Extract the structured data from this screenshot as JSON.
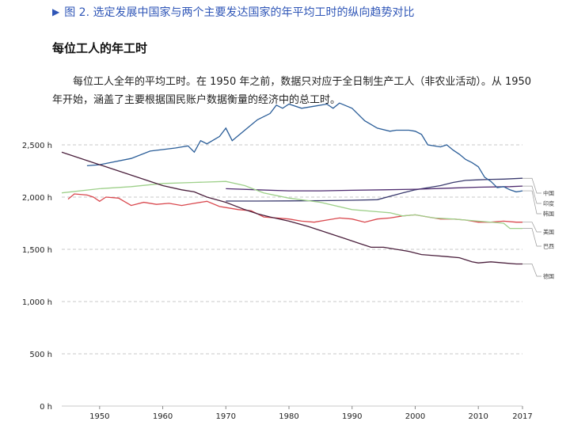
{
  "header": {
    "figure_marker": "▶",
    "figure_caption": "图 2. 选定发展中国家与两个主要发达国家的年平均工时的纵向趋势对比"
  },
  "chart_data": {
    "type": "line",
    "title": "每位工人的年工时",
    "subtitle": "每位工人全年的平均工时。在 1950 年之前，数据只对应于全日制生产工人（非农业活动）。从 1950 年开始，涵盖了主要根据国民账户数据衡量的经济中的总工时。",
    "xlim": [
      1944,
      2017
    ],
    "ylim": [
      0,
      2750
    ],
    "x_ticks": [
      1950,
      1960,
      1970,
      1980,
      1990,
      2000,
      2010,
      2017
    ],
    "y_ticks": [
      {
        "value": 0,
        "label": "0 h"
      },
      {
        "value": 500,
        "label": "500 h"
      },
      {
        "value": 1000,
        "label": "1,000 h"
      },
      {
        "value": 1500,
        "label": "1,500 h"
      },
      {
        "value": 2000,
        "label": "2,000 h"
      },
      {
        "value": 2500,
        "label": "2,500 h"
      }
    ],
    "grid": "horizontal-dashed",
    "legend_placement": "right",
    "series": [
      {
        "name": "中国",
        "color": "#3a3a6e",
        "points": [
          [
            1970,
            1962
          ],
          [
            1975,
            1962
          ],
          [
            1980,
            1964
          ],
          [
            1985,
            1966
          ],
          [
            1990,
            1970
          ],
          [
            1994,
            1975
          ],
          [
            1998,
            2040
          ],
          [
            2000,
            2070
          ],
          [
            2002,
            2090
          ],
          [
            2004,
            2110
          ],
          [
            2006,
            2140
          ],
          [
            2008,
            2160
          ],
          [
            2010,
            2165
          ],
          [
            2012,
            2170
          ],
          [
            2014,
            2172
          ],
          [
            2017,
            2180
          ]
        ]
      },
      {
        "name": "印度",
        "color": "#4d2a6e",
        "points": [
          [
            1970,
            2080
          ],
          [
            1975,
            2070
          ],
          [
            1980,
            2060
          ],
          [
            1985,
            2060
          ],
          [
            1990,
            2065
          ],
          [
            1995,
            2070
          ],
          [
            2000,
            2075
          ],
          [
            2005,
            2085
          ],
          [
            2010,
            2095
          ],
          [
            2015,
            2100
          ],
          [
            2017,
            2105
          ]
        ]
      },
      {
        "name": "韩国",
        "color": "#2a5d98",
        "points": [
          [
            1948,
            2300
          ],
          [
            1950,
            2310
          ],
          [
            1955,
            2370
          ],
          [
            1958,
            2440
          ],
          [
            1962,
            2470
          ],
          [
            1964,
            2490
          ],
          [
            1965,
            2430
          ],
          [
            1966,
            2540
          ],
          [
            1967,
            2510
          ],
          [
            1969,
            2580
          ],
          [
            1970,
            2660
          ],
          [
            1971,
            2540
          ],
          [
            1973,
            2640
          ],
          [
            1975,
            2740
          ],
          [
            1977,
            2800
          ],
          [
            1978,
            2880
          ],
          [
            1979,
            2850
          ],
          [
            1980,
            2890
          ],
          [
            1982,
            2850
          ],
          [
            1984,
            2870
          ],
          [
            1986,
            2890
          ],
          [
            1987,
            2850
          ],
          [
            1988,
            2900
          ],
          [
            1990,
            2850
          ],
          [
            1992,
            2730
          ],
          [
            1994,
            2660
          ],
          [
            1996,
            2630
          ],
          [
            1997,
            2640
          ],
          [
            1999,
            2640
          ],
          [
            2000,
            2630
          ],
          [
            2001,
            2600
          ],
          [
            2002,
            2500
          ],
          [
            2004,
            2480
          ],
          [
            2005,
            2500
          ],
          [
            2006,
            2450
          ],
          [
            2007,
            2410
          ],
          [
            2008,
            2360
          ],
          [
            2009,
            2330
          ],
          [
            2010,
            2290
          ],
          [
            2011,
            2190
          ],
          [
            2012,
            2150
          ],
          [
            2013,
            2090
          ],
          [
            2014,
            2100
          ],
          [
            2015,
            2070
          ],
          [
            2016,
            2050
          ],
          [
            2017,
            2060
          ]
        ]
      },
      {
        "name": "美国",
        "color": "#d9484e",
        "points": [
          [
            1945,
            1980
          ],
          [
            1946,
            2030
          ],
          [
            1948,
            2020
          ],
          [
            1949,
            2000
          ],
          [
            1950,
            1960
          ],
          [
            1951,
            2000
          ],
          [
            1953,
            1990
          ],
          [
            1955,
            1920
          ],
          [
            1957,
            1950
          ],
          [
            1959,
            1930
          ],
          [
            1961,
            1940
          ],
          [
            1963,
            1920
          ],
          [
            1965,
            1940
          ],
          [
            1967,
            1960
          ],
          [
            1969,
            1910
          ],
          [
            1970,
            1900
          ],
          [
            1972,
            1880
          ],
          [
            1974,
            1870
          ],
          [
            1976,
            1810
          ],
          [
            1978,
            1800
          ],
          [
            1980,
            1790
          ],
          [
            1982,
            1770
          ],
          [
            1984,
            1760
          ],
          [
            1986,
            1780
          ],
          [
            1988,
            1800
          ],
          [
            1990,
            1790
          ],
          [
            1992,
            1760
          ],
          [
            1994,
            1790
          ],
          [
            1996,
            1800
          ],
          [
            1998,
            1820
          ],
          [
            2000,
            1830
          ],
          [
            2002,
            1810
          ],
          [
            2004,
            1790
          ],
          [
            2006,
            1790
          ],
          [
            2008,
            1780
          ],
          [
            2010,
            1760
          ],
          [
            2012,
            1760
          ],
          [
            2014,
            1770
          ],
          [
            2016,
            1760
          ],
          [
            2017,
            1760
          ]
        ]
      },
      {
        "name": "巴西",
        "color": "#9ed08a",
        "points": [
          [
            1944,
            2040
          ],
          [
            1950,
            2080
          ],
          [
            1955,
            2100
          ],
          [
            1960,
            2130
          ],
          [
            1965,
            2140
          ],
          [
            1970,
            2150
          ],
          [
            1973,
            2110
          ],
          [
            1976,
            2040
          ],
          [
            1980,
            1990
          ],
          [
            1985,
            1950
          ],
          [
            1990,
            1880
          ],
          [
            1994,
            1860
          ],
          [
            1996,
            1850
          ],
          [
            1998,
            1820
          ],
          [
            2000,
            1830
          ],
          [
            2003,
            1800
          ],
          [
            2006,
            1790
          ],
          [
            2010,
            1770
          ],
          [
            2014,
            1750
          ],
          [
            2015,
            1700
          ],
          [
            2017,
            1700
          ]
        ]
      },
      {
        "name": "德国",
        "color": "#4a1f3c",
        "points": [
          [
            1944,
            2430
          ],
          [
            1950,
            2310
          ],
          [
            1955,
            2210
          ],
          [
            1960,
            2110
          ],
          [
            1963,
            2070
          ],
          [
            1965,
            2050
          ],
          [
            1967,
            2000
          ],
          [
            1970,
            1950
          ],
          [
            1973,
            1880
          ],
          [
            1975,
            1840
          ],
          [
            1977,
            1810
          ],
          [
            1980,
            1770
          ],
          [
            1983,
            1720
          ],
          [
            1985,
            1680
          ],
          [
            1987,
            1640
          ],
          [
            1989,
            1600
          ],
          [
            1991,
            1560
          ],
          [
            1993,
            1520
          ],
          [
            1995,
            1520
          ],
          [
            1997,
            1500
          ],
          [
            1999,
            1480
          ],
          [
            2001,
            1450
          ],
          [
            2003,
            1440
          ],
          [
            2005,
            1430
          ],
          [
            2007,
            1420
          ],
          [
            2009,
            1380
          ],
          [
            2010,
            1370
          ],
          [
            2012,
            1380
          ],
          [
            2014,
            1370
          ],
          [
            2016,
            1360
          ],
          [
            2017,
            1360
          ]
        ]
      }
    ]
  }
}
